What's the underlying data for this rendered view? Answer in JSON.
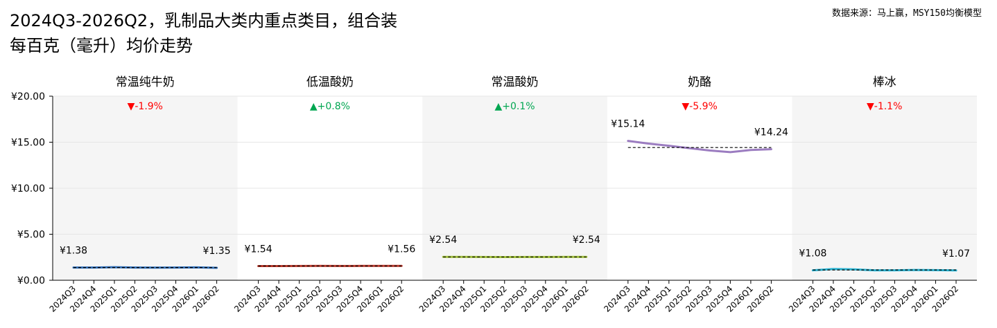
{
  "title": "2024Q3-2026Q2，乳制品大类内重点类目，组合装\n每百克（毫升）均价走势",
  "source_note": "数据来源：马上赢，MSY150均衡模型",
  "colors": {
    "up": "#00a651",
    "down": "#ff0000",
    "panel_bg": "#f5f5f5",
    "grid": "#e6e6e6"
  },
  "chart_data": {
    "type": "line",
    "x": [
      "2024Q3",
      "2024Q4",
      "2025Q1",
      "2025Q2",
      "2025Q3",
      "2025Q4",
      "2026Q1",
      "2026Q2"
    ],
    "ylim": [
      0,
      20
    ],
    "yticks": [
      0,
      5,
      10,
      15,
      20
    ],
    "ytick_labels": [
      "¥0.00",
      "¥5.00",
      "¥10.00",
      "¥15.00",
      "¥20.00"
    ],
    "grid": true,
    "panels": [
      {
        "name": "常温纯牛奶",
        "values": [
          1.38,
          1.38,
          1.42,
          1.38,
          1.37,
          1.38,
          1.4,
          1.35
        ],
        "start_label": "¥1.38",
        "end_label": "¥1.35",
        "change": "▼-1.9%",
        "direction": "down",
        "color": "#2f6db5"
      },
      {
        "name": "低温酸奶",
        "values": [
          1.54,
          1.54,
          1.55,
          1.56,
          1.55,
          1.56,
          1.56,
          1.56
        ],
        "start_label": "¥1.54",
        "end_label": "¥1.56",
        "change": "▲+0.8%",
        "direction": "up",
        "color": "#c0392b"
      },
      {
        "name": "常温酸奶",
        "values": [
          2.54,
          2.54,
          2.53,
          2.52,
          2.53,
          2.53,
          2.54,
          2.54
        ],
        "start_label": "¥2.54",
        "end_label": "¥2.54",
        "change": "▲+0.1%",
        "direction": "up",
        "color": "#a3c43a"
      },
      {
        "name": "奶酪",
        "values": [
          15.14,
          14.85,
          14.62,
          14.35,
          14.1,
          13.92,
          14.15,
          14.24
        ],
        "start_label": "¥15.14",
        "end_label": "¥14.24",
        "change": "▼-5.9%",
        "direction": "down",
        "color": "#9b7cc0"
      },
      {
        "name": "棒冰",
        "values": [
          1.08,
          1.22,
          1.18,
          1.08,
          1.08,
          1.12,
          1.1,
          1.07
        ],
        "start_label": "¥1.08",
        "end_label": "¥1.07",
        "change": "▼-1.1%",
        "direction": "down",
        "color": "#2ab3d1"
      }
    ]
  }
}
